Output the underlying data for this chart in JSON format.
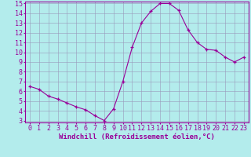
{
  "x": [
    0,
    1,
    2,
    3,
    4,
    5,
    6,
    7,
    8,
    9,
    10,
    11,
    12,
    13,
    14,
    15,
    16,
    17,
    18,
    19,
    20,
    21,
    22,
    23
  ],
  "y": [
    6.5,
    6.2,
    5.5,
    5.2,
    4.8,
    4.4,
    4.1,
    3.5,
    3.0,
    4.2,
    7.0,
    10.5,
    13.0,
    14.2,
    15.0,
    15.0,
    14.3,
    12.3,
    11.0,
    10.3,
    10.2,
    9.5,
    9.0,
    9.5
  ],
  "xlim_min": -0.5,
  "xlim_max": 23.5,
  "ylim_min": 2.8,
  "ylim_max": 15.2,
  "yticks": [
    3,
    4,
    5,
    6,
    7,
    8,
    9,
    10,
    11,
    12,
    13,
    14,
    15
  ],
  "xticks": [
    0,
    1,
    2,
    3,
    4,
    5,
    6,
    7,
    8,
    9,
    10,
    11,
    12,
    13,
    14,
    15,
    16,
    17,
    18,
    19,
    20,
    21,
    22,
    23
  ],
  "xlabel": "Windchill (Refroidissement éolien,°C)",
  "line_color": "#990099",
  "marker_color": "#990099",
  "bg_color": "#b3ecec",
  "grid_color": "#9999bb",
  "axis_label_color": "#990099",
  "tick_label_color": "#990099",
  "border_color": "#990099",
  "xlabel_fontsize": 6.5,
  "tick_fontsize": 6.0,
  "font_family": "monospace"
}
